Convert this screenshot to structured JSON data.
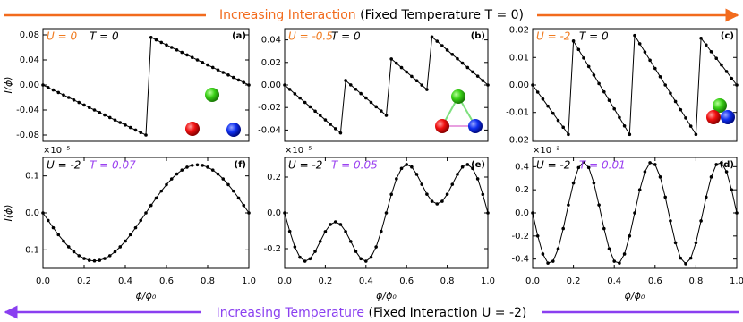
{
  "header": {
    "label": "Increasing Interaction",
    "note": "(Fixed Temperature T = 0)"
  },
  "footer": {
    "label": "Increasing Temperature",
    "note": "(Fixed Interaction U = -2)"
  },
  "chart_data": [
    {
      "type": "line",
      "panel_label": "(a)",
      "ylabel": "I(ϕ)",
      "color": "#000000",
      "annotations": [
        {
          "text": "U = 0",
          "color": "#f07a1e"
        },
        {
          "text": "T = 0",
          "color": "#000000"
        }
      ],
      "xlim": [
        0,
        1
      ],
      "ylim": [
        -0.09,
        0.09
      ],
      "yticks": [
        -0.08,
        -0.04,
        {
          "value": 0,
          "label": "0.00"
        },
        0.04,
        0.08
      ],
      "x": [
        0,
        0.025,
        0.05,
        0.075,
        0.1,
        0.125,
        0.15,
        0.175,
        0.2,
        0.225,
        0.25,
        0.275,
        0.3,
        0.325,
        0.35,
        0.375,
        0.4,
        0.425,
        0.45,
        0.475,
        0.5,
        0.525,
        0.55,
        0.575,
        0.6,
        0.625,
        0.65,
        0.675,
        0.7,
        0.725,
        0.75,
        0.775,
        0.8,
        0.825,
        0.85,
        0.875,
        0.9,
        0.925,
        0.95,
        0.975,
        1
      ],
      "values": [
        0,
        -0.004,
        -0.008,
        -0.012,
        -0.016,
        -0.02,
        -0.024,
        -0.028,
        -0.032,
        -0.036,
        -0.04,
        -0.044,
        -0.048,
        -0.052,
        -0.056,
        -0.06,
        -0.064,
        -0.068,
        -0.072,
        -0.076,
        -0.08,
        0.076,
        0.072,
        0.068,
        0.064,
        0.06,
        0.056,
        0.052,
        0.048,
        0.044,
        0.04,
        0.036,
        0.032,
        0.028,
        0.024,
        0.02,
        0.016,
        0.012,
        0.008,
        0.004,
        0
      ]
    },
    {
      "type": "line",
      "panel_label": "(b)",
      "color": "#000000",
      "annotations": [
        {
          "text": "U = -0.5",
          "color": "#f07a1e"
        },
        {
          "text": "T = 0",
          "color": "#000000"
        }
      ],
      "xlim": [
        0,
        1
      ],
      "ylim": [
        -0.05,
        0.05
      ],
      "yticks": [
        -0.04,
        -0.02,
        {
          "value": 0,
          "label": "0.00"
        },
        0.02,
        0.04
      ],
      "x": [
        0,
        0.025,
        0.05,
        0.075,
        0.1,
        0.125,
        0.15,
        0.175,
        0.2,
        0.225,
        0.25,
        0.275,
        0.3,
        0.325,
        0.35,
        0.375,
        0.4,
        0.425,
        0.45,
        0.475,
        0.5,
        0.525,
        0.55,
        0.575,
        0.6,
        0.625,
        0.65,
        0.675,
        0.7,
        0.725,
        0.75,
        0.775,
        0.8,
        0.825,
        0.85,
        0.875,
        0.9,
        0.925,
        0.95,
        0.975,
        1
      ],
      "values": [
        0,
        -0.0039,
        -0.0078,
        -0.0116,
        -0.0155,
        -0.0194,
        -0.0233,
        -0.0271,
        -0.031,
        -0.0349,
        -0.0388,
        -0.0426,
        0.004,
        0.0001,
        -0.0038,
        -0.0076,
        -0.0115,
        -0.0154,
        -0.0193,
        -0.0231,
        -0.027,
        0.0231,
        0.0193,
        0.0154,
        0.0115,
        0.0076,
        0.0038,
        -0.0001,
        -0.004,
        0.0426,
        0.0388,
        0.0349,
        0.031,
        0.0271,
        0.0233,
        0.0194,
        0.0155,
        0.0116,
        0.0078,
        0.0039,
        0
      ]
    },
    {
      "type": "line",
      "panel_label": "(c)",
      "color": "#000000",
      "annotations": [
        {
          "text": "U = -2",
          "color": "#f07a1e"
        },
        {
          "text": "T = 0",
          "color": "#000000"
        }
      ],
      "xlim": [
        0,
        1
      ],
      "ylim": [
        -0.0205,
        0.0205
      ],
      "yticks": [
        -0.02,
        -0.01,
        {
          "value": 0,
          "label": "0.00"
        },
        0.01,
        0.02
      ],
      "x": [
        0,
        0.025,
        0.05,
        0.075,
        0.1,
        0.125,
        0.15,
        0.175,
        0.2,
        0.225,
        0.25,
        0.275,
        0.3,
        0.325,
        0.35,
        0.375,
        0.4,
        0.425,
        0.45,
        0.475,
        0.5,
        0.525,
        0.55,
        0.575,
        0.6,
        0.625,
        0.65,
        0.675,
        0.7,
        0.725,
        0.75,
        0.775,
        0.8,
        0.825,
        0.85,
        0.875,
        0.9,
        0.925,
        0.95,
        0.975,
        1
      ],
      "values": [
        0,
        -0.0026,
        -0.0051,
        -0.0077,
        -0.0103,
        -0.0129,
        -0.0154,
        -0.018,
        0.016,
        0.0129,
        0.0098,
        0.0067,
        0.0036,
        0.0005,
        -0.0025,
        -0.0056,
        -0.0087,
        -0.0118,
        -0.0149,
        -0.018,
        0.018,
        0.015,
        0.012,
        0.009,
        0.006,
        0.003,
        0,
        -0.003,
        -0.006,
        -0.009,
        -0.012,
        -0.015,
        -0.018,
        0.017,
        0.0146,
        0.0121,
        0.0097,
        0.0073,
        0.0049,
        0.0024,
        0
      ]
    },
    {
      "type": "line",
      "panel_label": "(f)",
      "ylabel": "I(ϕ)",
      "xlabel": "ϕ/ϕ₀",
      "y_offset_label": "×10⁻⁵",
      "color": "#000000",
      "annotations": [
        {
          "text": "U = -2",
          "color": "#000000"
        },
        {
          "text": "T = 0.07",
          "color": "#9a40f0"
        }
      ],
      "xlim": [
        0,
        1
      ],
      "ylim": [
        -0.15,
        0.15
      ],
      "xticks": [
        {
          "value": 0,
          "label": "0.0"
        },
        0.2,
        0.4,
        0.6,
        0.8,
        {
          "value": 1,
          "label": "1.0"
        }
      ],
      "yticks": [
        -0.1,
        {
          "value": 0,
          "label": "0.0"
        },
        0.1
      ],
      "x": [
        0,
        0.025,
        0.05,
        0.075,
        0.1,
        0.125,
        0.15,
        0.175,
        0.2,
        0.225,
        0.25,
        0.275,
        0.3,
        0.325,
        0.35,
        0.375,
        0.4,
        0.425,
        0.45,
        0.475,
        0.5,
        0.525,
        0.55,
        0.575,
        0.6,
        0.625,
        0.65,
        0.675,
        0.7,
        0.725,
        0.75,
        0.775,
        0.8,
        0.825,
        0.85,
        0.875,
        0.9,
        0.925,
        0.95,
        0.975,
        1
      ],
      "values": [
        0,
        -0.0203,
        -0.0402,
        -0.059,
        -0.0764,
        -0.0919,
        -0.1052,
        -0.1158,
        -0.1236,
        -0.1284,
        -0.13,
        -0.1284,
        -0.1236,
        -0.1158,
        -0.1052,
        -0.0919,
        -0.0764,
        -0.059,
        -0.0402,
        -0.0203,
        0,
        0.0203,
        0.0402,
        0.059,
        0.0764,
        0.0919,
        0.1052,
        0.1158,
        0.1236,
        0.1284,
        0.13,
        0.1284,
        0.1236,
        0.1158,
        0.1052,
        0.0919,
        0.0764,
        0.059,
        0.0402,
        0.0203,
        0
      ]
    },
    {
      "type": "line",
      "panel_label": "(e)",
      "xlabel": "ϕ/ϕ₀",
      "y_offset_label": "×10⁻⁵",
      "color": "#000000",
      "annotations": [
        {
          "text": "U = -2",
          "color": "#000000"
        },
        {
          "text": "T = 0.05",
          "color": "#9a40f0"
        }
      ],
      "xlim": [
        0,
        1
      ],
      "ylim": [
        -0.31,
        0.31
      ],
      "xticks": [
        {
          "value": 0,
          "label": "0.0"
        },
        0.2,
        0.4,
        0.6,
        0.8,
        {
          "value": 1,
          "label": "1.0"
        }
      ],
      "yticks": [
        -0.2,
        {
          "value": 0,
          "label": "0.0"
        },
        0.2
      ],
      "x": [
        0,
        0.025,
        0.05,
        0.075,
        0.1,
        0.125,
        0.15,
        0.175,
        0.2,
        0.225,
        0.25,
        0.275,
        0.3,
        0.325,
        0.35,
        0.375,
        0.4,
        0.425,
        0.45,
        0.475,
        0.5,
        0.525,
        0.55,
        0.575,
        0.6,
        0.625,
        0.65,
        0.675,
        0.7,
        0.725,
        0.75,
        0.775,
        0.8,
        0.825,
        0.85,
        0.875,
        0.9,
        0.925,
        0.95,
        0.975,
        1
      ],
      "values": [
        0,
        -0.1033,
        -0.1903,
        -0.2482,
        -0.2701,
        -0.2565,
        -0.2153,
        -0.1594,
        -0.1044,
        -0.0645,
        -0.05,
        -0.0645,
        -0.1044,
        -0.1594,
        -0.2153,
        -0.2565,
        -0.2701,
        -0.2482,
        -0.1903,
        -0.1033,
        0,
        0.1033,
        0.1903,
        0.2482,
        0.2701,
        0.2565,
        0.2153,
        0.1594,
        0.1044,
        0.0645,
        0.05,
        0.0645,
        0.1044,
        0.1594,
        0.2153,
        0.2565,
        0.2701,
        0.2482,
        0.1903,
        0.1033,
        0
      ]
    },
    {
      "type": "line",
      "panel_label": "(d)",
      "xlabel": "ϕ/ϕ₀",
      "y_offset_label": "×10⁻²",
      "color": "#000000",
      "annotations": [
        {
          "text": "U = -2",
          "color": "#000000"
        },
        {
          "text": "T = 0.01",
          "color": "#9a40f0"
        }
      ],
      "xlim": [
        0,
        1
      ],
      "ylim": [
        -0.48,
        0.48
      ],
      "xticks": [
        {
          "value": 0,
          "label": "0.0"
        },
        0.2,
        0.4,
        0.6,
        0.8,
        {
          "value": 1,
          "label": "1.0"
        }
      ],
      "yticks": [
        -0.4,
        -0.2,
        {
          "value": 0,
          "label": "0.0"
        },
        0.2,
        0.4
      ],
      "x": [
        0,
        0.025,
        0.05,
        0.075,
        0.1,
        0.125,
        0.15,
        0.175,
        0.2,
        0.225,
        0.25,
        0.275,
        0.3,
        0.325,
        0.35,
        0.375,
        0.4,
        0.425,
        0.45,
        0.475,
        0.5,
        0.525,
        0.55,
        0.575,
        0.6,
        0.625,
        0.65,
        0.675,
        0.7,
        0.725,
        0.75,
        0.775,
        0.8,
        0.825,
        0.85,
        0.875,
        0.9,
        0.925,
        0.95,
        0.975,
        1
      ],
      "values": [
        0,
        -0.1998,
        -0.356,
        -0.4346,
        -0.4185,
        -0.3111,
        -0.136,
        0.0688,
        0.2586,
        0.392,
        0.44,
        0.392,
        0.2586,
        0.0688,
        -0.136,
        -0.3111,
        -0.4185,
        -0.4346,
        -0.356,
        -0.1998,
        0,
        0.1998,
        0.356,
        0.4346,
        0.4185,
        0.3111,
        0.136,
        -0.0688,
        -0.2586,
        -0.392,
        -0.44,
        -0.392,
        -0.2586,
        -0.0688,
        0.136,
        0.3111,
        0.4185,
        0.4346,
        0.356,
        0.1998,
        0
      ]
    }
  ]
}
